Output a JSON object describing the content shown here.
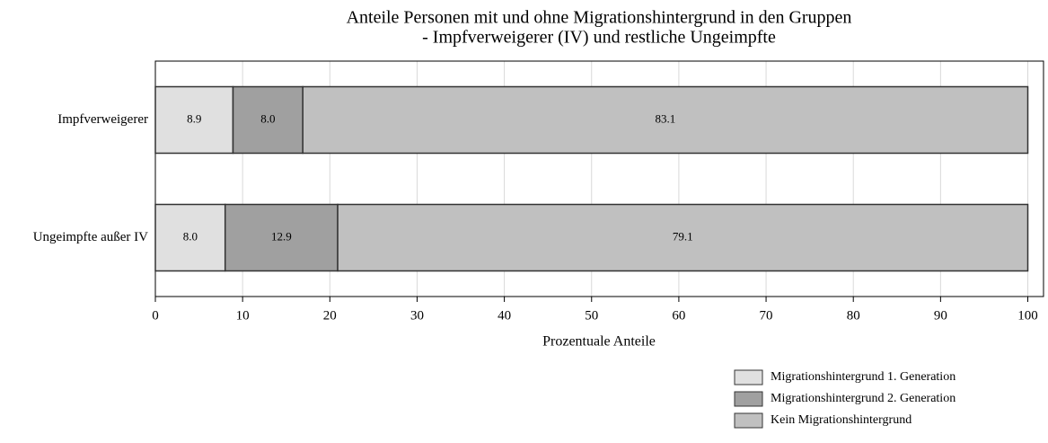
{
  "chart_data": {
    "type": "stacked_barh",
    "title": [
      "Anteile Personen mit und ohne Migrationshintergrund in den Gruppen",
      "- Impfverweigerer (IV) und restliche  Ungeimpfte"
    ],
    "xlabel": "Prozentuale Anteile",
    "categories": [
      "Impfverweigerer",
      "Ungeimpfte außer IV"
    ],
    "series": [
      {
        "name": "Migrationshintergrund 1. Generation",
        "color": "#e0e0e0",
        "values": [
          8.9,
          8
        ],
        "value_labels": [
          "8.9",
          "8.0"
        ]
      },
      {
        "name": "Migrationshintergrund 2. Generation",
        "color": "#a0a0a0",
        "values": [
          8,
          12.9
        ],
        "value_labels": [
          "8.0",
          "12.9"
        ]
      },
      {
        "name": "Kein Migrationshintergrund",
        "color": "#c0c0c0",
        "values": [
          83.1,
          79.1
        ],
        "value_labels": [
          "83.1",
          "79.1"
        ]
      }
    ],
    "xlim": [
      0,
      101.8
    ],
    "xticks": [
      0,
      10,
      20,
      30,
      40,
      50,
      60,
      70,
      80,
      90,
      100
    ],
    "grid": true,
    "legend": "lower right"
  }
}
